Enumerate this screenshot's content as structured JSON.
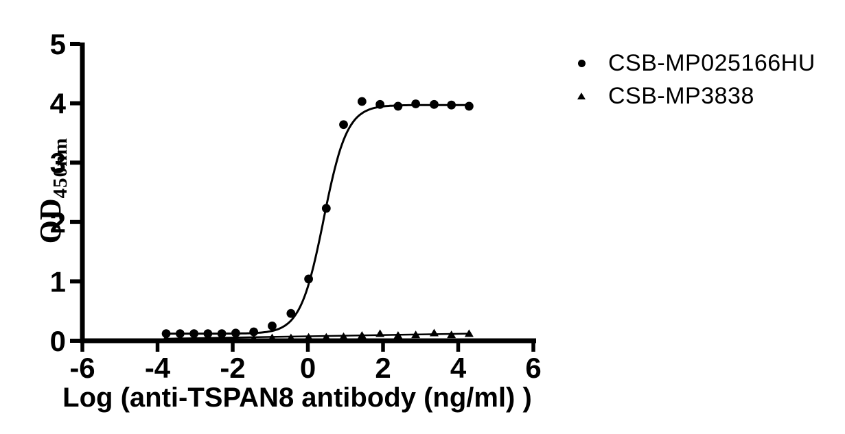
{
  "chart_data": {
    "type": "scatter",
    "title": "",
    "xlabel": "Log (anti-TSPAN8 antibody (ng/ml) )",
    "ylabel": "OD",
    "ylabel_sub": "450nm",
    "xlim": [
      -6,
      6
    ],
    "ylim": [
      0,
      5
    ],
    "x_ticks": [
      -6,
      -4,
      -2,
      0,
      2,
      4,
      6
    ],
    "y_ticks": [
      0,
      1,
      2,
      3,
      4,
      5
    ],
    "grid": false,
    "legend_position": "right-top",
    "background": "#ffffff",
    "axis_color": "#000000",
    "series": [
      {
        "name": "CSB-MP025166HU",
        "marker": "circle",
        "color": "#000000",
        "points": [
          [
            -3.77,
            0.12
          ],
          [
            -3.4,
            0.12
          ],
          [
            -3.03,
            0.12
          ],
          [
            -2.66,
            0.12
          ],
          [
            -2.29,
            0.12
          ],
          [
            -1.92,
            0.13
          ],
          [
            -1.44,
            0.15
          ],
          [
            -0.95,
            0.25
          ],
          [
            -0.45,
            0.46
          ],
          [
            0.02,
            1.04
          ],
          [
            0.49,
            2.23
          ],
          [
            0.95,
            3.64
          ],
          [
            1.44,
            4.03
          ],
          [
            1.92,
            3.98
          ],
          [
            2.4,
            3.95
          ],
          [
            2.87,
            3.99
          ],
          [
            3.36,
            3.98
          ],
          [
            3.82,
            3.97
          ],
          [
            4.29,
            3.95
          ]
        ],
        "fit": {
          "type": "sigmoid",
          "bottom": 0.12,
          "top": 3.97,
          "logEC50": 0.42,
          "hill": 1.4,
          "x_start": -3.77,
          "x_end": 4.29
        }
      },
      {
        "name": "CSB-MP3838",
        "marker": "triangle",
        "color": "#000000",
        "points": [
          [
            -3.77,
            0.04
          ],
          [
            -3.4,
            0.04
          ],
          [
            -3.03,
            0.04
          ],
          [
            -2.66,
            0.04
          ],
          [
            -2.29,
            0.04
          ],
          [
            -1.92,
            0.04
          ],
          [
            -1.44,
            0.04
          ],
          [
            -0.95,
            0.05
          ],
          [
            -0.45,
            0.05
          ],
          [
            0.02,
            0.06
          ],
          [
            0.49,
            0.06
          ],
          [
            0.95,
            0.07
          ],
          [
            1.44,
            0.09
          ],
          [
            1.92,
            0.12
          ],
          [
            2.4,
            0.09
          ],
          [
            2.87,
            0.1
          ],
          [
            3.36,
            0.13
          ],
          [
            3.82,
            0.1
          ],
          [
            4.29,
            0.12
          ]
        ],
        "fit": {
          "type": "linear",
          "x_start": -3.77,
          "y_start": 0.035,
          "x_end": 4.29,
          "y_end": 0.12
        }
      }
    ]
  }
}
